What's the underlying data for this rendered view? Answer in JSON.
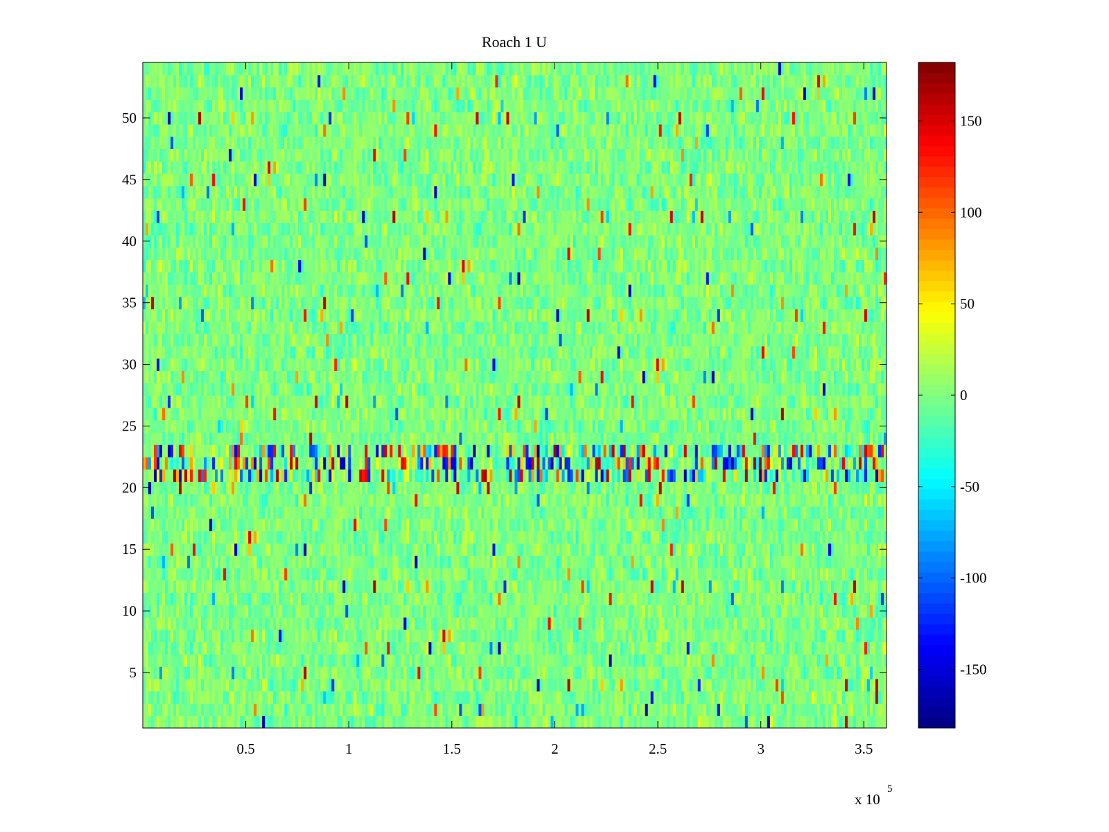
{
  "chart_data": {
    "type": "heatmap",
    "title": "Roach 1 U",
    "xlabel": "",
    "ylabel": "",
    "x_range": [
      0,
      361000
    ],
    "y_range": [
      0.5,
      54.5
    ],
    "x_ticks": [
      {
        "value": 50000,
        "label": "0.5"
      },
      {
        "value": 100000,
        "label": "1"
      },
      {
        "value": 150000,
        "label": "1.5"
      },
      {
        "value": 200000,
        "label": "2"
      },
      {
        "value": 250000,
        "label": "2.5"
      },
      {
        "value": 300000,
        "label": "3"
      },
      {
        "value": 350000,
        "label": "3.5"
      }
    ],
    "x_exponent_base": "x 10",
    "x_exponent_power": "5",
    "y_ticks": [
      {
        "value": 5,
        "label": "5"
      },
      {
        "value": 10,
        "label": "10"
      },
      {
        "value": 15,
        "label": "15"
      },
      {
        "value": 20,
        "label": "20"
      },
      {
        "value": 25,
        "label": "25"
      },
      {
        "value": 30,
        "label": "30"
      },
      {
        "value": 35,
        "label": "35"
      },
      {
        "value": 40,
        "label": "40"
      },
      {
        "value": 45,
        "label": "45"
      },
      {
        "value": 50,
        "label": "50"
      }
    ],
    "rows": 54,
    "background_value": 0,
    "noise_amplitude": 25,
    "high_variance_rows": [
      21,
      22,
      23
    ],
    "high_variance_amplitude": 130,
    "colormap": "jet",
    "colorbar": {
      "clim": [
        -182,
        182
      ],
      "ticks": [
        {
          "value": 150,
          "label": "150"
        },
        {
          "value": 100,
          "label": "100"
        },
        {
          "value": 50,
          "label": "50"
        },
        {
          "value": 0,
          "label": "0"
        },
        {
          "value": -50,
          "label": "-50"
        },
        {
          "value": -100,
          "label": "-100"
        },
        {
          "value": -150,
          "label": "-150"
        }
      ]
    },
    "grid": false
  }
}
